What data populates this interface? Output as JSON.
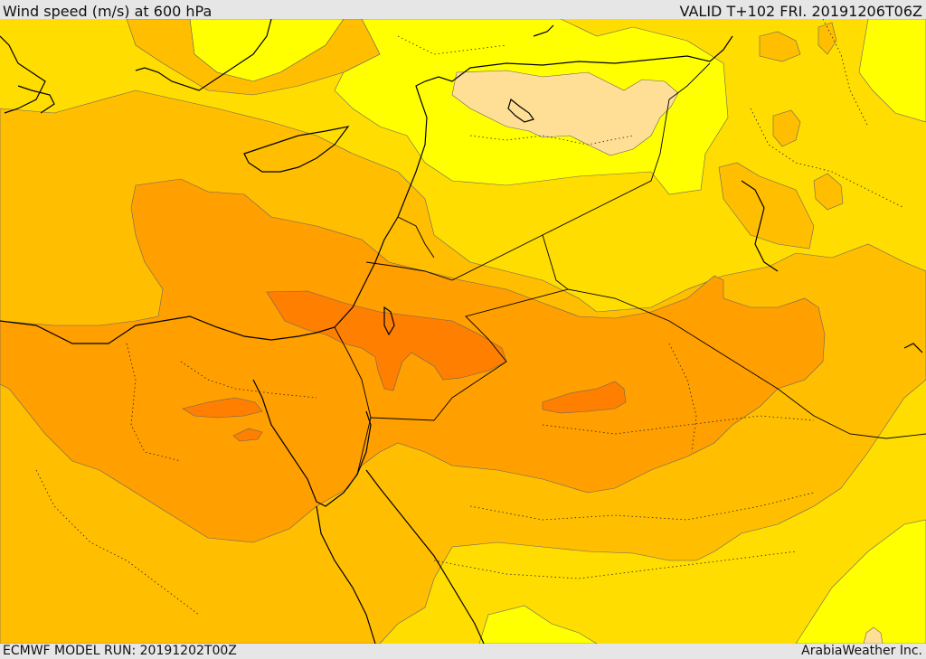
{
  "header": {
    "title": "Wind speed (m/s) at 600 hPa",
    "valid": "VALID T+102 FRI. 20191206T06Z"
  },
  "footer": {
    "model_run": "ECMWF MODEL RUN: 20191202T00Z",
    "credit": "ArabiaWeather Inc."
  },
  "colors": {
    "band_1": "#ffde95",
    "band_2": "#ffff00",
    "band_3": "#ffdd00",
    "band_4": "#ffbe00",
    "band_5": "#ff9f00",
    "band_6": "#ff7f00",
    "coastline": "#000000",
    "border": "#000000",
    "contour": "#666666"
  }
}
